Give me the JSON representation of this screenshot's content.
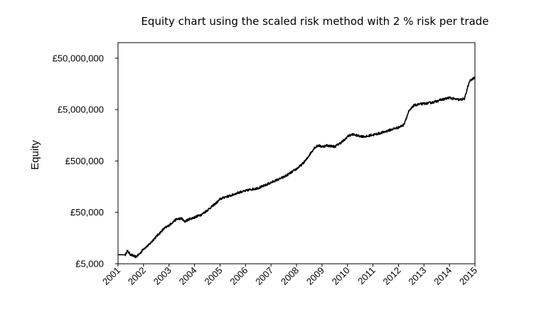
{
  "chart_data": {
    "type": "line",
    "title": "Equity chart using the scaled risk method with 2 % risk per trade",
    "xlabel": "",
    "ylabel": "Equity",
    "y_scale": "log",
    "ylim": [
      5000,
      100000000
    ],
    "xlim": [
      2001,
      2015
    ],
    "x_tick_labels": [
      "2001",
      "2002",
      "2003",
      "2004",
      "2005",
      "2006",
      "2007",
      "2008",
      "2009",
      "2010",
      "2011",
      "2012",
      "2013",
      "2014",
      "2015"
    ],
    "y_tick_values": [
      5000,
      50000,
      500000,
      5000000,
      50000000
    ],
    "y_tick_labels": [
      "£5,000",
      "£50,000",
      "£500,000",
      "£5,000,000",
      "£50,000,000"
    ],
    "grid": false,
    "legend": "none",
    "series": [
      {
        "color": "#000000",
        "x": [
          2001.0,
          2001.3,
          2001.35,
          2001.5,
          2001.7,
          2001.85,
          2002.0,
          2002.2,
          2002.4,
          2002.6,
          2002.8,
          2003.0,
          2003.2,
          2003.3,
          2003.5,
          2003.6,
          2003.8,
          2004.0,
          2004.2,
          2004.3,
          2004.5,
          2004.7,
          2004.9,
          2005.0,
          2005.2,
          2005.4,
          2005.6,
          2005.8,
          2006.0,
          2006.2,
          2006.4,
          2006.6,
          2006.8,
          2007.0,
          2007.2,
          2007.4,
          2007.6,
          2007.8,
          2008.0,
          2008.2,
          2008.4,
          2008.5,
          2008.7,
          2008.85,
          2009.0,
          2009.2,
          2009.5,
          2009.7,
          2009.9,
          2010.0,
          2010.2,
          2010.4,
          2010.6,
          2010.8,
          2010.9,
          2011.0,
          2011.2,
          2011.4,
          2011.6,
          2011.8,
          2012.0,
          2012.2,
          2012.4,
          2012.6,
          2012.8,
          2013.0,
          2013.2,
          2013.4,
          2013.6,
          2013.8,
          2014.0,
          2014.2,
          2014.4,
          2014.6,
          2014.7,
          2014.8,
          2015.0
        ],
        "values": [
          7500,
          7500,
          9000,
          7500,
          6800,
          7800,
          9800,
          11500,
          15000,
          19000,
          24000,
          28000,
          34000,
          37000,
          38000,
          33000,
          37000,
          40000,
          44000,
          46000,
          55000,
          66000,
          80000,
          90000,
          100000,
          105000,
          115000,
          125000,
          130000,
          140000,
          145000,
          155000,
          170000,
          190000,
          210000,
          230000,
          260000,
          300000,
          350000,
          420000,
          540000,
          650000,
          900000,
          1000000,
          950000,
          1000000,
          950000,
          1100000,
          1300000,
          1500000,
          1650000,
          1550000,
          1500000,
          1500000,
          1600000,
          1600000,
          1700000,
          1800000,
          1950000,
          2100000,
          2250000,
          2500000,
          4500000,
          6000000,
          6300000,
          6500000,
          6700000,
          7000000,
          7600000,
          8000000,
          8500000,
          8000000,
          7700000,
          8200000,
          13000000,
          18000000,
          21000000
        ]
      }
    ]
  }
}
